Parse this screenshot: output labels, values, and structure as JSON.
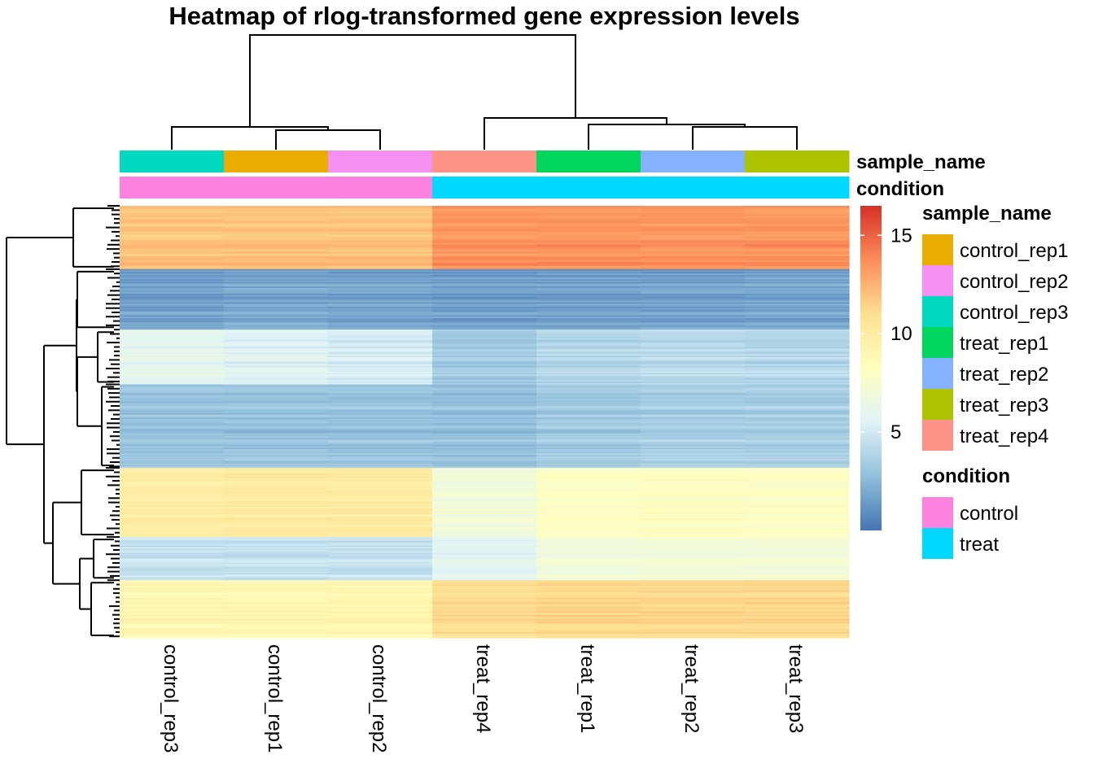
{
  "chart_data": {
    "type": "heatmap",
    "title": "Heatmap of rlog-transformed gene expression levels",
    "columns": [
      "control_rep3",
      "control_rep1",
      "control_rep2",
      "treat_rep4",
      "treat_rep1",
      "treat_rep2",
      "treat_rep3"
    ],
    "column_annotations": [
      {
        "name": "sample_name",
        "values": [
          "control_rep3",
          "control_rep1",
          "control_rep2",
          "treat_rep4",
          "treat_rep1",
          "treat_rep2",
          "treat_rep3"
        ]
      },
      {
        "name": "condition",
        "values": [
          "control",
          "control",
          "control",
          "treat",
          "treat",
          "treat",
          "treat"
        ]
      }
    ],
    "row_clusters": [
      {
        "rows": 44,
        "values": [
          12.0,
          12.0,
          12.0,
          13.5,
          13.5,
          13.5,
          13.5
        ]
      },
      {
        "rows": 42,
        "values": [
          1.6,
          1.8,
          1.7,
          1.5,
          1.6,
          1.6,
          1.7
        ]
      },
      {
        "rows": 38,
        "values": [
          6.0,
          5.6,
          5.2,
          3.4,
          4.0,
          4.2,
          4.0
        ]
      },
      {
        "rows": 58,
        "values": [
          3.0,
          3.0,
          3.0,
          2.8,
          3.3,
          3.5,
          3.5
        ]
      },
      {
        "rows": 48,
        "values": [
          9.8,
          10.0,
          10.0,
          7.0,
          8.0,
          8.2,
          8.0
        ]
      },
      {
        "rows": 30,
        "values": [
          4.6,
          4.6,
          4.6,
          5.8,
          7.0,
          7.2,
          7.2
        ]
      },
      {
        "rows": 40,
        "values": [
          9.0,
          9.0,
          9.0,
          11.0,
          11.2,
          11.2,
          11.2
        ]
      }
    ],
    "colorbar": {
      "ticks": [
        5,
        10,
        15
      ],
      "range": [
        0,
        16.5
      ],
      "colors": [
        "#4575b4",
        "#91bfdb",
        "#e0f3f8",
        "#ffffbf",
        "#fee090",
        "#fc8d59",
        "#d73027"
      ]
    },
    "grid": false,
    "legend_position": "right"
  },
  "legend": {
    "sample_name": {
      "title": "sample_name",
      "items": [
        {
          "label": "control_rep1",
          "color": "#EBAC00"
        },
        {
          "label": "control_rep2",
          "color": "#F58FF2"
        },
        {
          "label": "control_rep3",
          "color": "#00D9BF"
        },
        {
          "label": "treat_rep1",
          "color": "#00D65E"
        },
        {
          "label": "treat_rep2",
          "color": "#85B2FF"
        },
        {
          "label": "treat_rep3",
          "color": "#ADC200"
        },
        {
          "label": "treat_rep4",
          "color": "#FF9287"
        }
      ]
    },
    "condition": {
      "title": "condition",
      "items": [
        {
          "label": "control",
          "color": "#FF81DF"
        },
        {
          "label": "treat",
          "color": "#00D8FF"
        }
      ]
    }
  }
}
